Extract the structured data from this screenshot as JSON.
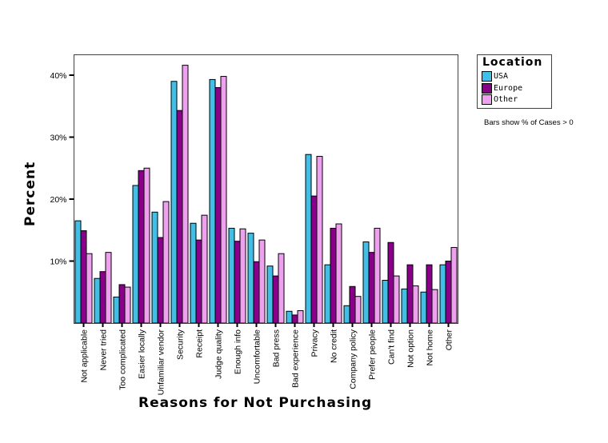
{
  "chart_data": {
    "type": "bar",
    "title": "",
    "xlabel": "Reasons for Not Purchasing",
    "ylabel": "Percent",
    "ylim": [
      0,
      44
    ],
    "yticks": [
      10,
      20,
      30,
      40
    ],
    "ytick_labels": [
      "10%",
      "20%",
      "30%",
      "40%"
    ],
    "grid": false,
    "legend": {
      "title": "Location",
      "position": "right-top",
      "entries": [
        "USA",
        "Europe",
        "Other"
      ]
    },
    "annotation": "Bars show % of Cases > 0",
    "categories": [
      "Not applicable",
      "Never tried",
      "Too complicated",
      "Easier locally",
      "Unfamiliar vendor",
      "Security",
      "Receipt",
      "Judge quality",
      "Enough info",
      "Uncomfortable",
      "Bad press",
      "Bad experience",
      "Privacy",
      "No credit",
      "Company policy",
      "Prefer people",
      "Can't find",
      "Not option",
      "Not home",
      "Other"
    ],
    "series": [
      {
        "name": "USA",
        "color": "#40c0e8",
        "values": [
          16.5,
          7.2,
          4.2,
          22.2,
          17.9,
          39.0,
          16.1,
          39.3,
          15.3,
          14.5,
          9.2,
          1.9,
          27.2,
          9.4,
          2.8,
          13.1,
          6.9,
          5.5,
          5.0,
          9.4
        ]
      },
      {
        "name": "Europe",
        "color": "#880088",
        "values": [
          14.9,
          8.3,
          6.2,
          24.6,
          13.8,
          34.3,
          13.4,
          38.0,
          13.2,
          9.9,
          7.6,
          1.3,
          20.5,
          15.3,
          5.9,
          11.4,
          13.0,
          9.4,
          9.4,
          10.0
        ]
      },
      {
        "name": "Other",
        "color": "#f0a0f0",
        "values": [
          11.2,
          11.4,
          5.8,
          25.0,
          19.6,
          41.6,
          17.4,
          39.8,
          15.2,
          13.4,
          11.2,
          2.0,
          26.9,
          16.0,
          4.3,
          15.3,
          7.6,
          6.0,
          5.4,
          12.2
        ]
      }
    ]
  },
  "legend": {
    "title": "Location",
    "items": [
      {
        "label": "USA",
        "color": "#40c0e8"
      },
      {
        "label": "Europe",
        "color": "#880088"
      },
      {
        "label": "Other",
        "color": "#f0a0f0"
      }
    ]
  },
  "note": "Bars show % of Cases > 0",
  "axes": {
    "xlabel": "Reasons for Not Purchasing",
    "ylabel": "Percent"
  }
}
